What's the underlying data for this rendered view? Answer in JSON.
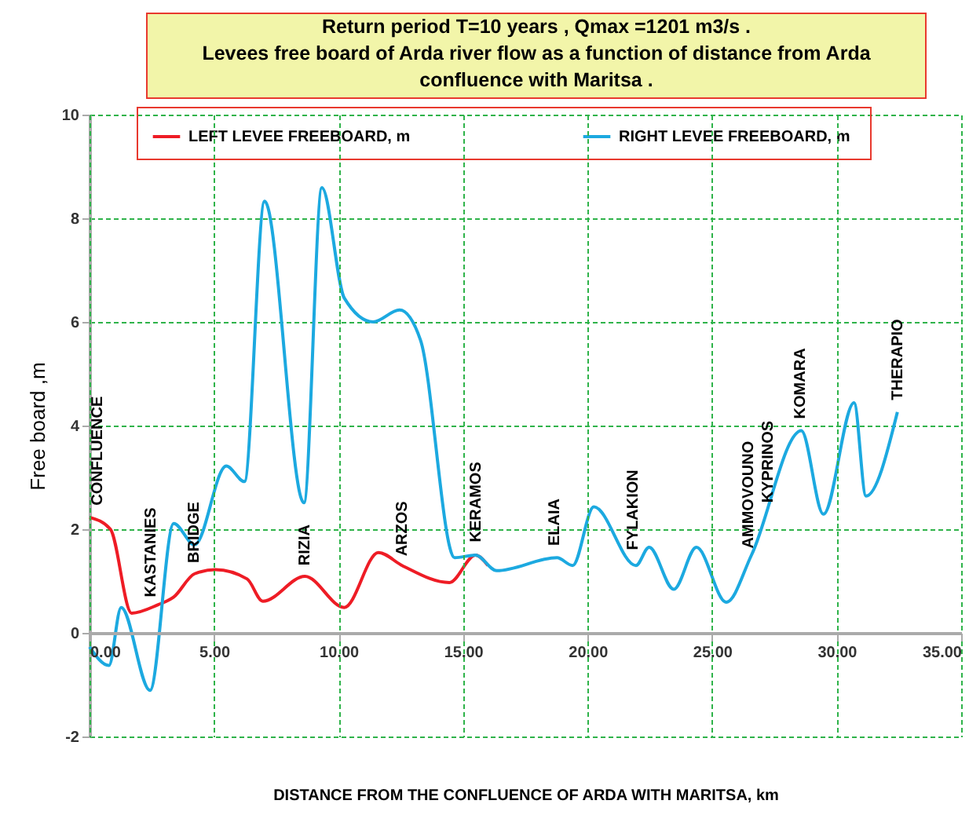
{
  "chart_data": {
    "type": "line",
    "title": "Return period  T=10 years  , Qmax =1201   m3/s .",
    "subtitle": "Levees  free board  of  Arda  river flow  as a function of  distance  from  Arda confluence with Maritsa  .",
    "xlabel": "DISTANCE  FROM THE CONFLUENCE OF ARDA WITH MARITSA, km",
    "ylabel": "Free  board  ,m",
    "xlim": [
      0,
      35
    ],
    "ylim": [
      -2,
      10
    ],
    "xticks": [
      {
        "value": 0,
        "label": "0.00"
      },
      {
        "value": 5,
        "label": "5.00"
      },
      {
        "value": 10,
        "label": "10.00"
      },
      {
        "value": 15,
        "label": "15.00"
      },
      {
        "value": 20,
        "label": "20.00"
      },
      {
        "value": 25,
        "label": "25.00"
      },
      {
        "value": 30,
        "label": "30.00"
      },
      {
        "value": 35,
        "label": "35.00"
      }
    ],
    "yticks": [
      -2,
      0,
      2,
      4,
      6,
      8,
      10
    ],
    "grid": true,
    "legend": "top",
    "line_style": "solid",
    "series": [
      {
        "name": "LEFT   LEVEE FREEBOARD, m",
        "color": "#ee1c25",
        "x": [
          0,
          0.84,
          1.69,
          2.74,
          3.38,
          4.22,
          5.06,
          6.33,
          6.96,
          8.65,
          10.23,
          11.6,
          12.55,
          14.45,
          15.5,
          16.0
        ],
        "values": [
          2.23,
          2.0,
          0.38,
          0.54,
          0.69,
          1.14,
          1.22,
          1.04,
          0.61,
          1.09,
          0.49,
          1.55,
          1.3,
          0.97,
          1.5,
          1.3
        ]
      },
      {
        "name": "RIGHT  LEVEE FREEBOARD, m",
        "color": "#1ca9e0",
        "x": [
          0,
          0.78,
          1.27,
          2.43,
          3.38,
          4.22,
          5.49,
          6.22,
          7.03,
          8.61,
          9.33,
          10.23,
          11.39,
          12.45,
          13.29,
          14.66,
          15.5,
          16.35,
          18.77,
          19.4,
          20.25,
          21.94,
          22.47,
          23.46,
          24.37,
          25.57,
          26.58,
          28.58,
          29.47,
          30.7,
          31.18,
          32.44
        ],
        "values": [
          -0.27,
          -0.63,
          0.49,
          -1.11,
          2.11,
          1.7,
          3.22,
          2.92,
          8.33,
          2.51,
          8.59,
          6.46,
          6.0,
          6.23,
          5.65,
          1.45,
          1.5,
          1.2,
          1.45,
          1.3,
          2.43,
          1.3,
          1.65,
          0.84,
          1.65,
          0.59,
          1.5,
          3.9,
          2.29,
          4.44,
          2.64,
          4.26
        ]
      }
    ],
    "annotations": [
      "CONFLUENCE",
      "KASTANIES",
      "BRIDGE",
      "RIZIA",
      "ARZOS",
      "KERAMOS",
      "ELAIA",
      "FYLAKION",
      "AMMOVOUNO",
      "KYPRINOS",
      "KOMARA",
      "THERAPIO"
    ]
  }
}
